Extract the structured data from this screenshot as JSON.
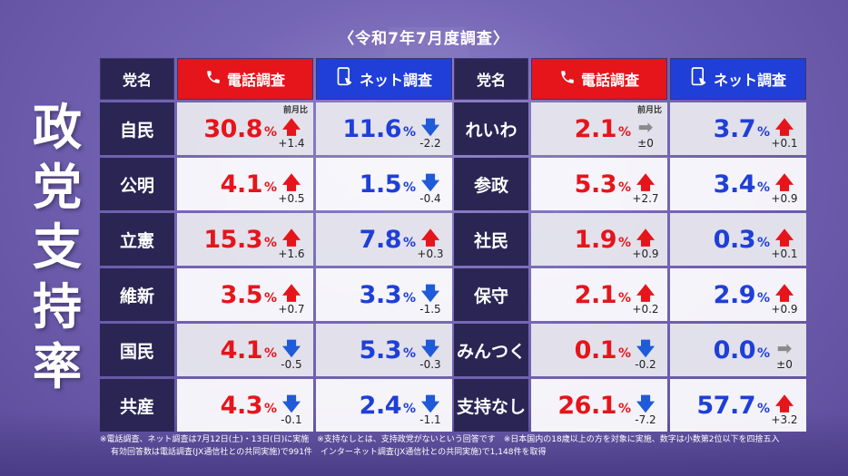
{
  "header": {
    "title": "〈令和7年7月度調査〉"
  },
  "side_title": [
    "政",
    "党",
    "支",
    "持",
    "率"
  ],
  "table_headers": {
    "party": "党名",
    "phone": "電話調査",
    "net": "ネット調査"
  },
  "prev_label": "前月比",
  "pct_unit": "%",
  "left_rows": [
    {
      "name": "自民",
      "phone": "30.8",
      "phone_dir": "up",
      "phone_chg": "+1.4",
      "net": "11.6",
      "net_dir": "down",
      "net_chg": "-2.2",
      "show_prev": true
    },
    {
      "name": "公明",
      "phone": "4.1",
      "phone_dir": "up",
      "phone_chg": "+0.5",
      "net": "1.5",
      "net_dir": "down",
      "net_chg": "-0.4"
    },
    {
      "name": "立憲",
      "phone": "15.3",
      "phone_dir": "up",
      "phone_chg": "+1.6",
      "net": "7.8",
      "net_dir": "up",
      "net_chg": "+0.3"
    },
    {
      "name": "維新",
      "phone": "3.5",
      "phone_dir": "up",
      "phone_chg": "+0.7",
      "net": "3.3",
      "net_dir": "down",
      "net_chg": "-1.5"
    },
    {
      "name": "国民",
      "phone": "4.1",
      "phone_dir": "down",
      "phone_chg": "-0.5",
      "net": "5.3",
      "net_dir": "down",
      "net_chg": "-0.3"
    },
    {
      "name": "共産",
      "phone": "4.3",
      "phone_dir": "down",
      "phone_chg": "-0.1",
      "net": "2.4",
      "net_dir": "down",
      "net_chg": "-1.1"
    }
  ],
  "right_rows": [
    {
      "name": "れいわ",
      "phone": "2.1",
      "phone_dir": "flat",
      "phone_chg": "±0",
      "net": "3.7",
      "net_dir": "up",
      "net_chg": "+0.1",
      "show_prev": true
    },
    {
      "name": "参政",
      "phone": "5.3",
      "phone_dir": "up",
      "phone_chg": "+2.7",
      "net": "3.4",
      "net_dir": "up",
      "net_chg": "+0.9"
    },
    {
      "name": "社民",
      "phone": "1.9",
      "phone_dir": "up",
      "phone_chg": "+0.9",
      "net": "0.3",
      "net_dir": "up",
      "net_chg": "+0.1"
    },
    {
      "name": "保守",
      "phone": "2.1",
      "phone_dir": "up",
      "phone_chg": "+0.2",
      "net": "2.9",
      "net_dir": "up",
      "net_chg": "+0.9"
    },
    {
      "name": "みんつく",
      "phone": "0.1",
      "phone_dir": "down",
      "phone_chg": "-0.2",
      "net": "0.0",
      "net_dir": "flat",
      "net_chg": "±0"
    },
    {
      "name": "支持なし",
      "phone": "26.1",
      "phone_dir": "down",
      "phone_chg": "-7.2",
      "net": "57.7",
      "net_dir": "up",
      "net_chg": "+3.2"
    }
  ],
  "footer": {
    "line1": "※電話調査、ネット調査は7月12日(土)・13日(日)に実施　※支持なしとは、支持政党がないという回答です　※日本国内の18歳以上の方を対象に実施、数字は小数第2位以下を四捨五入",
    "line2": "有効回答数は電話調査(JX通信社との共同実施)で991件　インターネット調査(JX通信社との共同実施)で1,148件を取得"
  },
  "colors": {
    "phone": "#e5151b",
    "net": "#1f3fd8",
    "party_bg": "#2b2554"
  }
}
